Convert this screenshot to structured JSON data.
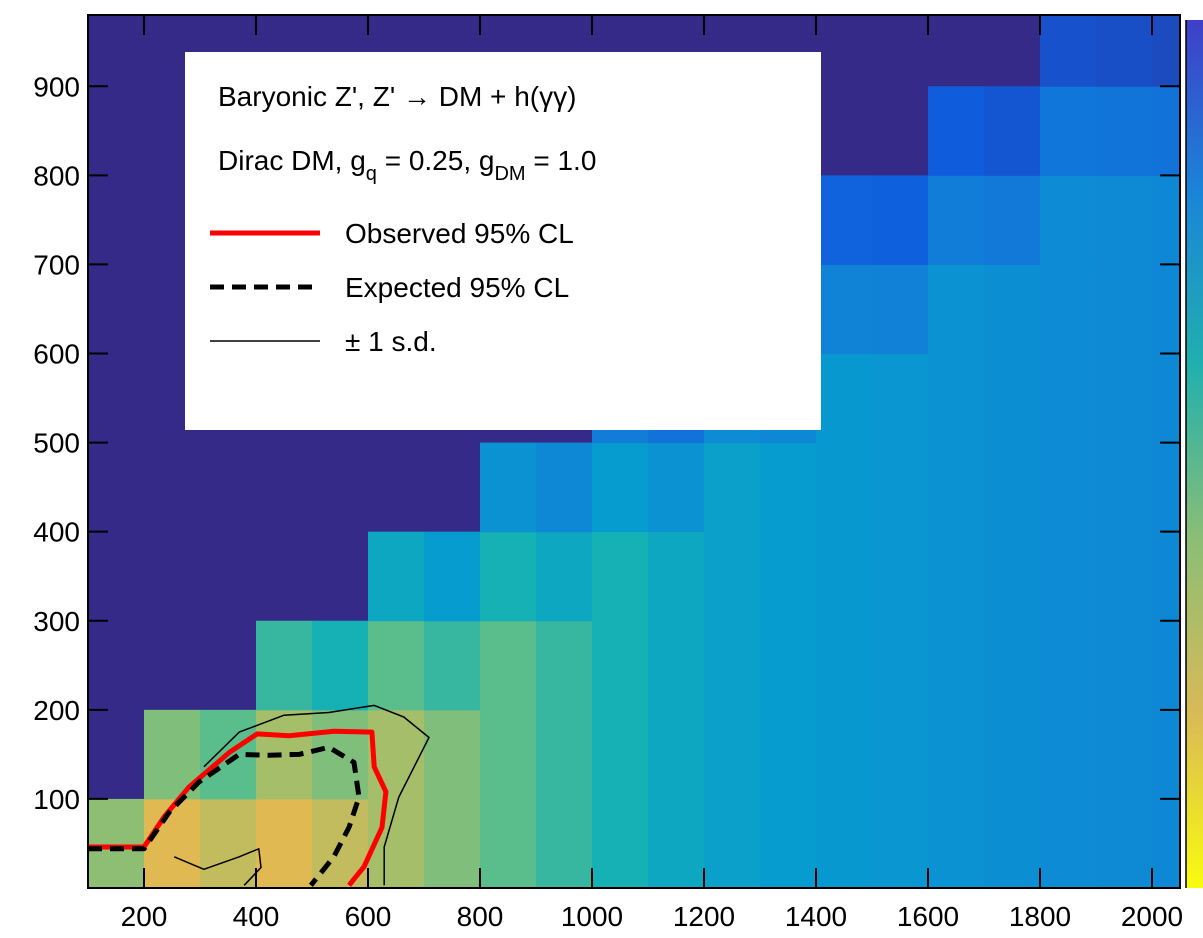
{
  "chart_data": {
    "type": "heatmap",
    "xlim": [
      100,
      2050
    ],
    "ylim": [
      0,
      980
    ],
    "xticks": [
      200,
      400,
      600,
      800,
      1000,
      1200,
      1400,
      1600,
      1800,
      2000
    ],
    "yticks": [
      100,
      200,
      300,
      400,
      500,
      600,
      700,
      800,
      900
    ],
    "xbins": [
      100,
      200,
      300,
      400,
      500,
      600,
      700,
      800,
      900,
      1000,
      1100,
      1200,
      1300,
      1400,
      1500,
      1600,
      1700,
      1800,
      1900,
      2000,
      2100
    ],
    "ybins": [
      0,
      100,
      200,
      300,
      400,
      500,
      600,
      700,
      800,
      900,
      1000
    ],
    "zlim": [
      0,
      1
    ],
    "z": [
      [
        0.72,
        0.85,
        0.8,
        0.85,
        0.8,
        0.75,
        0.7,
        0.65,
        0.6,
        0.55,
        0.5,
        0.47,
        0.45,
        0.43,
        0.42,
        0.4,
        0.38,
        0.37,
        0.36,
        0.35
      ],
      [
        null,
        0.7,
        0.65,
        0.75,
        0.7,
        0.75,
        0.7,
        0.65,
        0.6,
        0.55,
        0.5,
        0.47,
        0.45,
        0.43,
        0.42,
        0.4,
        0.38,
        0.37,
        0.36,
        0.35
      ],
      [
        null,
        null,
        null,
        0.6,
        0.55,
        0.65,
        0.6,
        0.65,
        0.6,
        0.55,
        0.5,
        0.47,
        0.45,
        0.43,
        0.42,
        0.4,
        0.38,
        0.37,
        0.36,
        0.35
      ],
      [
        null,
        null,
        null,
        null,
        null,
        0.5,
        0.45,
        0.55,
        0.5,
        0.55,
        0.5,
        0.47,
        0.45,
        0.43,
        0.42,
        0.4,
        0.38,
        0.37,
        0.36,
        0.35
      ],
      [
        null,
        null,
        null,
        null,
        null,
        null,
        null,
        0.4,
        0.35,
        0.45,
        0.4,
        0.47,
        0.45,
        0.43,
        0.42,
        0.4,
        0.38,
        0.37,
        0.36,
        0.35
      ],
      [
        null,
        null,
        null,
        null,
        null,
        null,
        null,
        null,
        null,
        0.3,
        0.25,
        0.37,
        0.35,
        0.43,
        0.42,
        0.4,
        0.38,
        0.37,
        0.36,
        0.35
      ],
      [
        null,
        null,
        null,
        null,
        null,
        null,
        null,
        null,
        null,
        null,
        null,
        0.22,
        0.2,
        0.33,
        0.32,
        0.4,
        0.38,
        0.37,
        0.36,
        0.35
      ],
      [
        null,
        null,
        null,
        null,
        null,
        null,
        null,
        null,
        null,
        null,
        null,
        null,
        null,
        0.18,
        0.17,
        0.3,
        0.28,
        0.37,
        0.36,
        0.35
      ],
      [
        null,
        null,
        null,
        null,
        null,
        null,
        null,
        null,
        null,
        null,
        null,
        null,
        null,
        null,
        null,
        0.15,
        0.13,
        0.27,
        0.26,
        0.25
      ],
      [
        null,
        null,
        null,
        null,
        null,
        null,
        null,
        null,
        null,
        null,
        null,
        null,
        null,
        null,
        null,
        null,
        null,
        0.12,
        0.11,
        0.1
      ]
    ],
    "legend_header": [
      "Baryonic Z', Z' → DM + h(γγ)"
    ],
    "legend_subheader": [
      "Dirac DM, g",
      "q",
      " = 0.25, g",
      "DM",
      " = 1.0"
    ],
    "series": [
      {
        "name": "Observed 95% CL",
        "color": "#ff0000",
        "style": "solid",
        "width": 5,
        "x": [
          100,
          200,
          236,
          280,
          352,
          402,
          459,
          539,
          607,
          611,
          632,
          625,
          593,
          566
        ],
        "values": [
          46,
          46,
          80,
          113,
          152,
          173,
          171,
          176,
          175,
          136,
          108,
          68,
          24,
          3
        ]
      },
      {
        "name": "Expected 95% CL",
        "color": "#000000",
        "style": "dashed",
        "width": 5,
        "x": [
          100,
          200,
          245,
          298,
          370,
          423,
          477,
          530,
          575,
          584,
          566,
          539,
          498
        ],
        "values": [
          44,
          44,
          85,
          119,
          150,
          149,
          150,
          158,
          141,
          102,
          68,
          35,
          3
        ]
      },
      {
        "name": "± 1 s.d.",
        "color": "#000000",
        "style": "solid",
        "width": 1.5,
        "x": [
          307,
          370,
          450,
          530,
          611,
          664,
          709,
          655,
          629,
          629,
          null,
          254,
          307,
          370,
          405,
          409,
          379
        ],
        "values": [
          136,
          175,
          194,
          197,
          205,
          192,
          169,
          102,
          46,
          3,
          null,
          35,
          21,
          35,
          44,
          23,
          3
        ]
      }
    ]
  }
}
